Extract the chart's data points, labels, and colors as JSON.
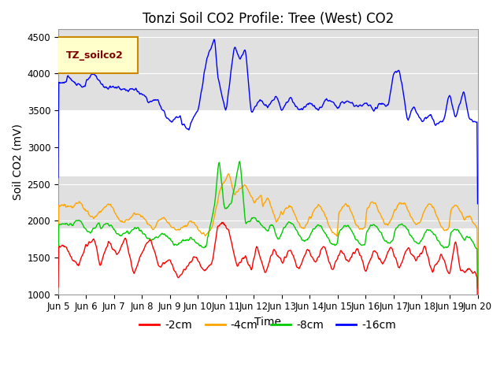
{
  "title": "Tonzi Soil CO2 Profile: Tree (West) CO2",
  "ylabel": "Soil CO2 (mV)",
  "xlabel": "Time",
  "ylim": [
    1000,
    4600
  ],
  "yticks": [
    1000,
    1500,
    2000,
    2500,
    3000,
    3500,
    4000,
    4500
  ],
  "xtick_labels": [
    "Jun 5",
    "Jun 6",
    "Jun 7",
    "Jun 8",
    "Jun 9",
    "Jun 10",
    "Jun 11",
    "Jun 12",
    "Jun 13",
    "Jun 14",
    "Jun 15",
    "Jun 16",
    "Jun 17",
    "Jun 18",
    "Jun 19",
    "Jun 20"
  ],
  "legend_label": "TZ_soilco2",
  "series_labels": [
    "-2cm",
    "-4cm",
    "-8cm",
    "-16cm"
  ],
  "series_colors": [
    "#ff0000",
    "#ffa500",
    "#00cc00",
    "#0000ff"
  ],
  "band_color": "#e0e0e0",
  "title_fontsize": 12,
  "axis_fontsize": 10,
  "tick_fontsize": 8.5,
  "legend_box_facecolor": "#ffffcc",
  "legend_box_edgecolor": "#cc8800",
  "legend_text_color": "#800000"
}
